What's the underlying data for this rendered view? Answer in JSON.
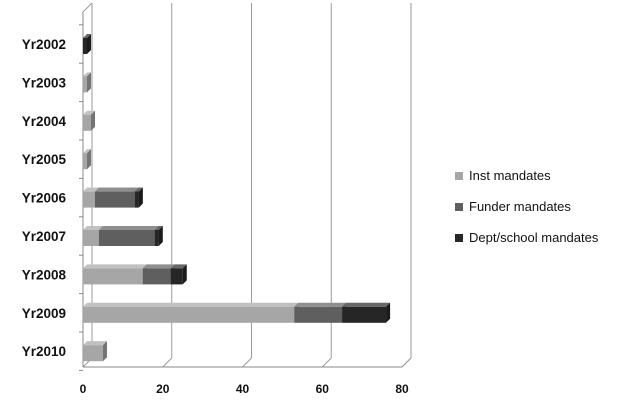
{
  "chart_data": {
    "type": "bar",
    "orientation": "horizontal",
    "stacked": true,
    "style": "3d",
    "categories": [
      "Yr2002",
      "Yr2003",
      "Yr2004",
      "Yr2005",
      "Yr2006",
      "Yr2007",
      "Yr2008",
      "Yr2009",
      "Yr2010"
    ],
    "series": [
      {
        "name": "Inst mandates",
        "color": "#a6a6a6",
        "values": [
          0,
          1,
          2,
          1,
          3,
          4,
          15,
          53,
          5
        ]
      },
      {
        "name": "Funder mandates",
        "color": "#5f5f5f",
        "values": [
          0,
          0,
          0,
          0,
          10,
          14,
          7,
          12,
          0
        ]
      },
      {
        "name": "Dept/school mandates",
        "color": "#262626",
        "values": [
          1,
          0,
          0,
          0,
          1,
          1,
          3,
          11,
          0
        ]
      }
    ],
    "xlim": [
      0,
      80
    ],
    "xticks": [
      0,
      20,
      40,
      60,
      80
    ],
    "x_tick_labels": [
      "0",
      "20",
      "40",
      "60",
      "80"
    ],
    "grid": "vertical major",
    "legend": "right",
    "title": "",
    "xlabel": "",
    "ylabel": ""
  }
}
